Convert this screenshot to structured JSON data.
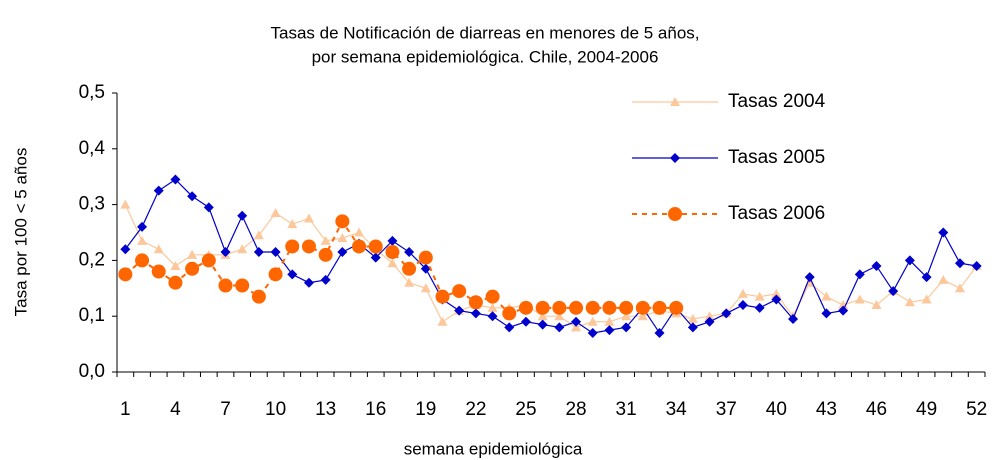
{
  "chart_data": {
    "type": "line",
    "title": [
      "Tasas de Notificación de diarreas en menores de 5 años,",
      "por semana  epidemiológica. Chile,  2004-2006"
    ],
    "xlabel": "semana epidemiológica",
    "ylabel": "Tasa por 100 < 5 años",
    "categories": [
      1,
      null,
      null,
      4,
      null,
      null,
      7,
      null,
      null,
      10,
      null,
      null,
      13,
      null,
      null,
      16,
      null,
      null,
      19,
      null,
      null,
      22,
      null,
      null,
      25,
      null,
      null,
      28,
      null,
      null,
      31,
      null,
      null,
      34,
      null,
      null,
      37,
      null,
      null,
      40,
      null,
      null,
      43,
      null,
      null,
      46,
      null,
      null,
      49,
      null,
      null,
      52
    ],
    "ylim": [
      0,
      0.5
    ],
    "yticks": [
      {
        "value": 0,
        "label": "0,0"
      },
      {
        "value": 0.1,
        "label": "0,1"
      },
      {
        "value": 0.2,
        "label": "0,2"
      },
      {
        "value": 0.3,
        "label": "0,3"
      },
      {
        "value": 0.4,
        "label": "0,4"
      },
      {
        "value": 0.5,
        "label": "0,5"
      }
    ],
    "grid": false,
    "legend": "top-right",
    "series": [
      {
        "name": "Tasas 2004",
        "color": "#fcc89b",
        "marker": "triangle",
        "line_style": "solid",
        "values": [
          0.3,
          0.235,
          0.22,
          0.19,
          0.21,
          0.21,
          0.21,
          0.22,
          0.245,
          0.285,
          0.265,
          0.275,
          0.235,
          0.24,
          0.25,
          0.22,
          0.195,
          0.16,
          0.15,
          0.09,
          0.11,
          0.12,
          0.115,
          0.115,
          0.12,
          0.1,
          0.1,
          0.08,
          0.09,
          0.09,
          0.1,
          0.1,
          0.11,
          0.105,
          0.095,
          0.1,
          0.105,
          0.14,
          0.135,
          0.14,
          0.1,
          0.16,
          0.135,
          0.12,
          0.13,
          0.12,
          0.145,
          0.125,
          0.13,
          0.165,
          0.15,
          0.19
        ]
      },
      {
        "name": "Tasas 2005",
        "color": "#0000cc",
        "marker": "diamond",
        "line_style": "solid",
        "values": [
          0.22,
          0.26,
          0.325,
          0.345,
          0.315,
          0.295,
          0.215,
          0.28,
          0.215,
          0.215,
          0.175,
          0.16,
          0.165,
          0.215,
          0.23,
          0.205,
          0.235,
          0.215,
          0.185,
          0.13,
          0.11,
          0.105,
          0.1,
          0.08,
          0.09,
          0.085,
          0.08,
          0.09,
          0.07,
          0.075,
          0.08,
          0.115,
          0.07,
          0.115,
          0.08,
          0.09,
          0.105,
          0.12,
          0.115,
          0.13,
          0.095,
          0.17,
          0.105,
          0.11,
          0.175,
          0.19,
          0.145,
          0.2,
          0.17,
          0.25,
          0.195,
          0.19
        ]
      },
      {
        "name": "Tasas 2006",
        "color": "#ff6600",
        "marker": "circle",
        "line_style": "dashed",
        "values": [
          0.175,
          0.2,
          0.18,
          0.16,
          0.185,
          0.2,
          0.155,
          0.155,
          0.135,
          0.175,
          0.225,
          0.225,
          0.21,
          0.27,
          0.225,
          0.225,
          0.215,
          0.185,
          0.205,
          0.135,
          0.145,
          0.125,
          0.135,
          0.105,
          0.115,
          0.115,
          0.115,
          0.115,
          0.115,
          0.115,
          0.115,
          0.115,
          0.115,
          0.115,
          null,
          null,
          null,
          null,
          null,
          null,
          null,
          null,
          null,
          null,
          null,
          null,
          null,
          null,
          null,
          null,
          null,
          null
        ]
      }
    ]
  }
}
